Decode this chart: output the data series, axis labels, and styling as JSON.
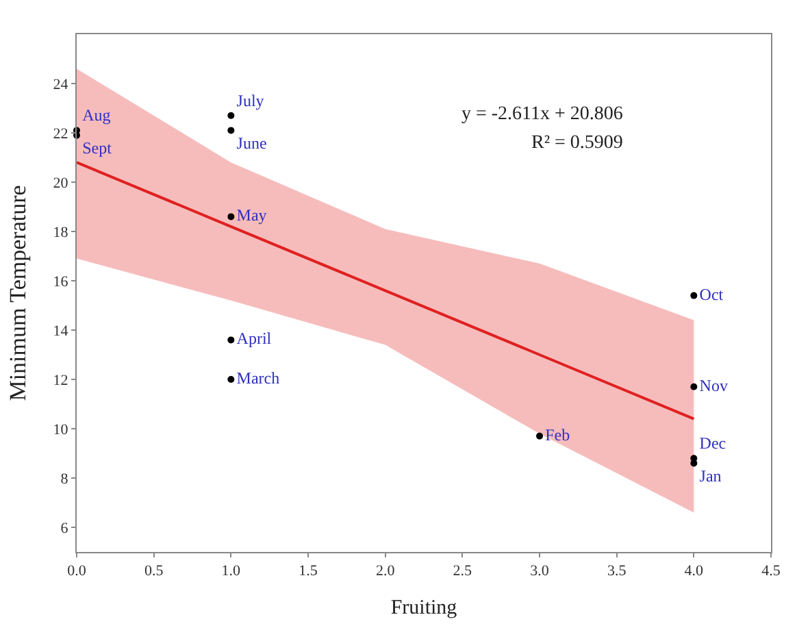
{
  "chart_data": {
    "type": "scatter",
    "xlabel": "Fruiting",
    "ylabel": "Minimum Temperature",
    "xlim": [
      0,
      4.5
    ],
    "xticks": [
      {
        "value": 0,
        "label": "0.0"
      },
      0.5,
      {
        "value": 1,
        "label": "1.0"
      },
      1.5,
      {
        "value": 2,
        "label": "2.0"
      },
      2.5,
      {
        "value": 3,
        "label": "3.0"
      },
      3.5,
      {
        "value": 4,
        "label": "4.0"
      },
      4.5
    ],
    "ylim": [
      5,
      26
    ],
    "yticks": [
      6,
      8,
      10,
      12,
      14,
      16,
      18,
      20,
      22,
      24
    ],
    "series": [
      {
        "type": "line",
        "color": "#e02020",
        "x": [
          0,
          1,
          2,
          3,
          4
        ],
        "values": [
          20.8,
          18.2,
          15.6,
          13.0,
          10.4
        ],
        "lower": [
          16.9,
          15.2,
          13.4,
          9.8,
          6.6
        ],
        "upper": [
          24.6,
          20.8,
          18.1,
          16.7,
          14.4
        ],
        "marker": "none",
        "line_style": "solid"
      },
      {
        "color": "#000000",
        "marker": "circle",
        "x": [
          0,
          0,
          1,
          1,
          1,
          1,
          1,
          3,
          4,
          4,
          4,
          4
        ],
        "values": [
          22.1,
          21.9,
          22.7,
          22.1,
          18.6,
          13.6,
          12.0,
          9.7,
          15.4,
          11.7,
          8.8,
          8.6
        ],
        "value_labels": [
          "Aug",
          "Sept",
          "July",
          "June",
          "May",
          "April",
          "March",
          "Feb",
          "Oct",
          "Nov",
          "Dec",
          "Jan"
        ]
      }
    ],
    "annotations": [
      "y = -2.611x + 20.806",
      "R² = 0.5909"
    ]
  }
}
